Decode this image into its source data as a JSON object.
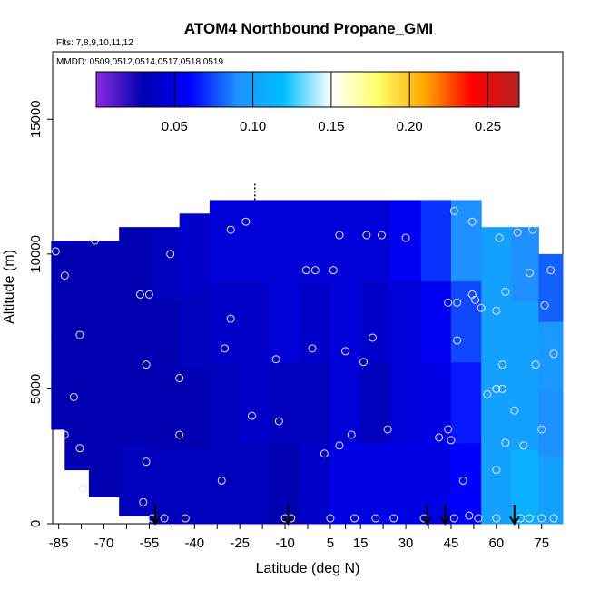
{
  "chart_data": {
    "type": "heatmap",
    "title": "ATOM4 Northbound Propane_GMI",
    "subtitle_flights": "Flts: 7,8,9,10,11,12",
    "subtitle_dates": "MMDD: 0509,0512,0514,0517,0518,0519",
    "xlabel": "Latitude (deg N)",
    "ylabel": "Altitude (m)",
    "xlim": [
      -87,
      82
    ],
    "ylim": [
      0,
      17500
    ],
    "x_ticks": [
      -85,
      -70,
      -55,
      -40,
      -25,
      -10,
      5,
      15,
      30,
      45,
      60,
      75
    ],
    "y_ticks": [
      0,
      5000,
      10000,
      15000
    ],
    "colorbar": {
      "range": [
        0,
        0.27
      ],
      "ticks": [
        "0.05",
        "0.10",
        "0.15",
        "0.20",
        "0.25"
      ],
      "tick_values": [
        0.05,
        0.1,
        0.15,
        0.2,
        0.25
      ],
      "colors": [
        "#8a2be2",
        "#0000b0",
        "#0000ff",
        "#1e90ff",
        "#00bfff",
        "#ffffff",
        "#ffff66",
        "#ffa500",
        "#ff0000",
        "#b22222"
      ]
    },
    "field": {
      "description_columns": "latitude bins with vertical profile of propane mixing ratio",
      "columns": [
        {
          "lat": -86,
          "top": 10500,
          "bottom": 3500,
          "values": [
            0.03,
            0.03,
            0.03,
            0.03
          ]
        },
        {
          "lat": -80,
          "top": 10500,
          "bottom": 2000,
          "values": [
            0.03,
            0.03,
            0.03,
            0.03
          ]
        },
        {
          "lat": -70,
          "top": 10500,
          "bottom": 1000,
          "values": [
            0.03,
            0.03,
            0.03,
            0.03
          ]
        },
        {
          "lat": -60,
          "top": 11000,
          "bottom": 300,
          "values": [
            0.03,
            0.03,
            0.03,
            0.035
          ]
        },
        {
          "lat": -50,
          "top": 11000,
          "bottom": 0,
          "values": [
            0.035,
            0.03,
            0.03,
            0.035
          ]
        },
        {
          "lat": -40,
          "top": 11500,
          "bottom": 0,
          "values": [
            0.04,
            0.035,
            0.03,
            0.035
          ]
        },
        {
          "lat": -30,
          "top": 12000,
          "bottom": 0,
          "values": [
            0.045,
            0.04,
            0.035,
            0.035
          ]
        },
        {
          "lat": -20,
          "top": 12000,
          "bottom": 0,
          "values": [
            0.045,
            0.04,
            0.04,
            0.035
          ]
        },
        {
          "lat": -10,
          "top": 12000,
          "bottom": 0,
          "values": [
            0.045,
            0.045,
            0.035,
            0.03
          ]
        },
        {
          "lat": 0,
          "top": 12000,
          "bottom": 0,
          "values": [
            0.045,
            0.04,
            0.035,
            0.04
          ]
        },
        {
          "lat": 10,
          "top": 12000,
          "bottom": 0,
          "values": [
            0.045,
            0.045,
            0.045,
            0.05
          ]
        },
        {
          "lat": 20,
          "top": 12000,
          "bottom": 0,
          "values": [
            0.045,
            0.04,
            0.035,
            0.05
          ]
        },
        {
          "lat": 30,
          "top": 12000,
          "bottom": 0,
          "values": [
            0.055,
            0.045,
            0.045,
            0.05
          ]
        },
        {
          "lat": 40,
          "top": 12000,
          "bottom": 0,
          "values": [
            0.07,
            0.055,
            0.05,
            0.05
          ]
        },
        {
          "lat": 50,
          "top": 12000,
          "bottom": 0,
          "values": [
            0.09,
            0.075,
            0.065,
            0.06
          ]
        },
        {
          "lat": 60,
          "top": 11000,
          "bottom": 0,
          "values": [
            0.1,
            0.1,
            0.1,
            0.1
          ]
        },
        {
          "lat": 70,
          "top": 11000,
          "bottom": 0,
          "values": [
            0.09,
            0.1,
            0.1,
            0.11
          ]
        },
        {
          "lat": 78,
          "top": 10000,
          "bottom": 0,
          "values": [
            0.08,
            0.095,
            0.09,
            0.1
          ]
        }
      ]
    },
    "sample_points": [
      [
        -86,
        10100
      ],
      [
        -83,
        9200
      ],
      [
        -78,
        7000
      ],
      [
        -80,
        4700
      ],
      [
        -83,
        3300
      ],
      [
        -78,
        2800
      ],
      [
        -77,
        1300
      ],
      [
        -73,
        10500
      ],
      [
        -58,
        8500
      ],
      [
        -55,
        8500
      ],
      [
        -56,
        5900
      ],
      [
        -48,
        10000
      ],
      [
        -45,
        5400
      ],
      [
        -45,
        3300
      ],
      [
        -56,
        2300
      ],
      [
        -57,
        800
      ],
      [
        -54,
        200
      ],
      [
        -50,
        200
      ],
      [
        -43,
        200
      ],
      [
        -31,
        1600
      ],
      [
        -30,
        6500
      ],
      [
        -28,
        7600
      ],
      [
        -28,
        10900
      ],
      [
        -23,
        11200
      ],
      [
        -21,
        4000
      ],
      [
        -13,
        6100
      ],
      [
        -12,
        3800
      ],
      [
        -3,
        9400
      ],
      [
        0,
        9400
      ],
      [
        -1,
        6500
      ],
      [
        3,
        2600
      ],
      [
        6,
        9400
      ],
      [
        8,
        10700
      ],
      [
        8,
        2900
      ],
      [
        10,
        6400
      ],
      [
        12,
        3300
      ],
      [
        16,
        6000
      ],
      [
        19,
        6900
      ],
      [
        17,
        10700
      ],
      [
        22,
        10700
      ],
      [
        24,
        3500
      ],
      [
        30,
        10600
      ],
      [
        5,
        200
      ],
      [
        13,
        200
      ],
      [
        20,
        200
      ],
      [
        26,
        200
      ],
      [
        36,
        200
      ],
      [
        41,
        3200
      ],
      [
        44,
        8200
      ],
      [
        44,
        3500
      ],
      [
        45,
        3100
      ],
      [
        46,
        11600
      ],
      [
        47,
        6800
      ],
      [
        47,
        8200
      ],
      [
        49,
        1600
      ],
      [
        52,
        11200
      ],
      [
        53,
        8300
      ],
      [
        52,
        8500
      ],
      [
        55,
        8000
      ],
      [
        57,
        4800
      ],
      [
        60,
        7900
      ],
      [
        60,
        5000
      ],
      [
        60,
        2000
      ],
      [
        61,
        10600
      ],
      [
        62,
        5900
      ],
      [
        62,
        5000
      ],
      [
        63,
        3000
      ],
      [
        63,
        8600
      ],
      [
        66,
        4200
      ],
      [
        67,
        10800
      ],
      [
        69,
        2900
      ],
      [
        71,
        9300
      ],
      [
        72,
        10900
      ],
      [
        73,
        5900
      ],
      [
        75,
        3500
      ],
      [
        76,
        8100
      ],
      [
        78,
        9400
      ],
      [
        79,
        6300
      ],
      [
        46,
        200
      ],
      [
        51,
        300
      ],
      [
        54,
        200
      ],
      [
        60,
        200
      ],
      [
        68,
        200
      ],
      [
        71,
        200
      ],
      [
        75,
        200
      ],
      [
        79,
        200
      ],
      [
        -8,
        200
      ],
      [
        -10,
        200
      ]
    ],
    "arrows_lat": [
      -53,
      -9,
      37,
      43,
      66
    ],
    "marker_lat": -20
  }
}
